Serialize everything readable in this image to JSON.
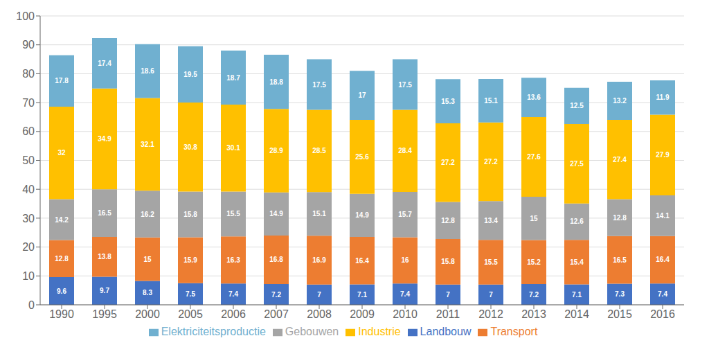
{
  "chart_data": {
    "type": "bar",
    "stacked": true,
    "categories": [
      "1990",
      "1995",
      "2000",
      "2005",
      "2006",
      "2007",
      "2008",
      "2009",
      "2010",
      "2011",
      "2012",
      "2013",
      "2014",
      "2015",
      "2016"
    ],
    "series": [
      {
        "name": "Landbouw",
        "color": "#4472C4",
        "values": [
          9.6,
          9.7,
          8.3,
          7.5,
          7.4,
          7.2,
          7.0,
          7.1,
          7.4,
          7.0,
          7.0,
          7.2,
          7.1,
          7.3,
          7.4
        ]
      },
      {
        "name": "Transport",
        "color": "#ED7D31",
        "values": [
          12.8,
          13.8,
          15.0,
          15.9,
          16.3,
          16.8,
          16.9,
          16.4,
          16.0,
          15.8,
          15.5,
          15.2,
          15.4,
          16.5,
          16.4
        ]
      },
      {
        "name": "Gebouwen",
        "color": "#A5A5A5",
        "values": [
          14.2,
          16.5,
          16.2,
          15.8,
          15.5,
          14.9,
          15.1,
          14.9,
          15.7,
          12.8,
          13.4,
          15.0,
          12.6,
          12.8,
          14.1
        ]
      },
      {
        "name": "Industrie",
        "color": "#FFC000",
        "values": [
          32.0,
          34.9,
          32.1,
          30.8,
          30.1,
          28.9,
          28.5,
          25.6,
          28.4,
          27.2,
          27.2,
          27.6,
          27.5,
          27.4,
          27.9
        ]
      },
      {
        "name": "Elektriciteitsproductie",
        "color": "#70B0D0",
        "values": [
          17.8,
          17.4,
          18.6,
          19.5,
          18.7,
          18.8,
          17.5,
          17.0,
          17.5,
          15.3,
          15.1,
          13.6,
          12.5,
          13.2,
          11.9
        ]
      }
    ],
    "ylim": [
      0,
      100
    ],
    "yticks": [
      0,
      10,
      20,
      30,
      40,
      50,
      60,
      70,
      80,
      90,
      100
    ],
    "grid": true,
    "legend": "bottom",
    "data_labels": true
  }
}
